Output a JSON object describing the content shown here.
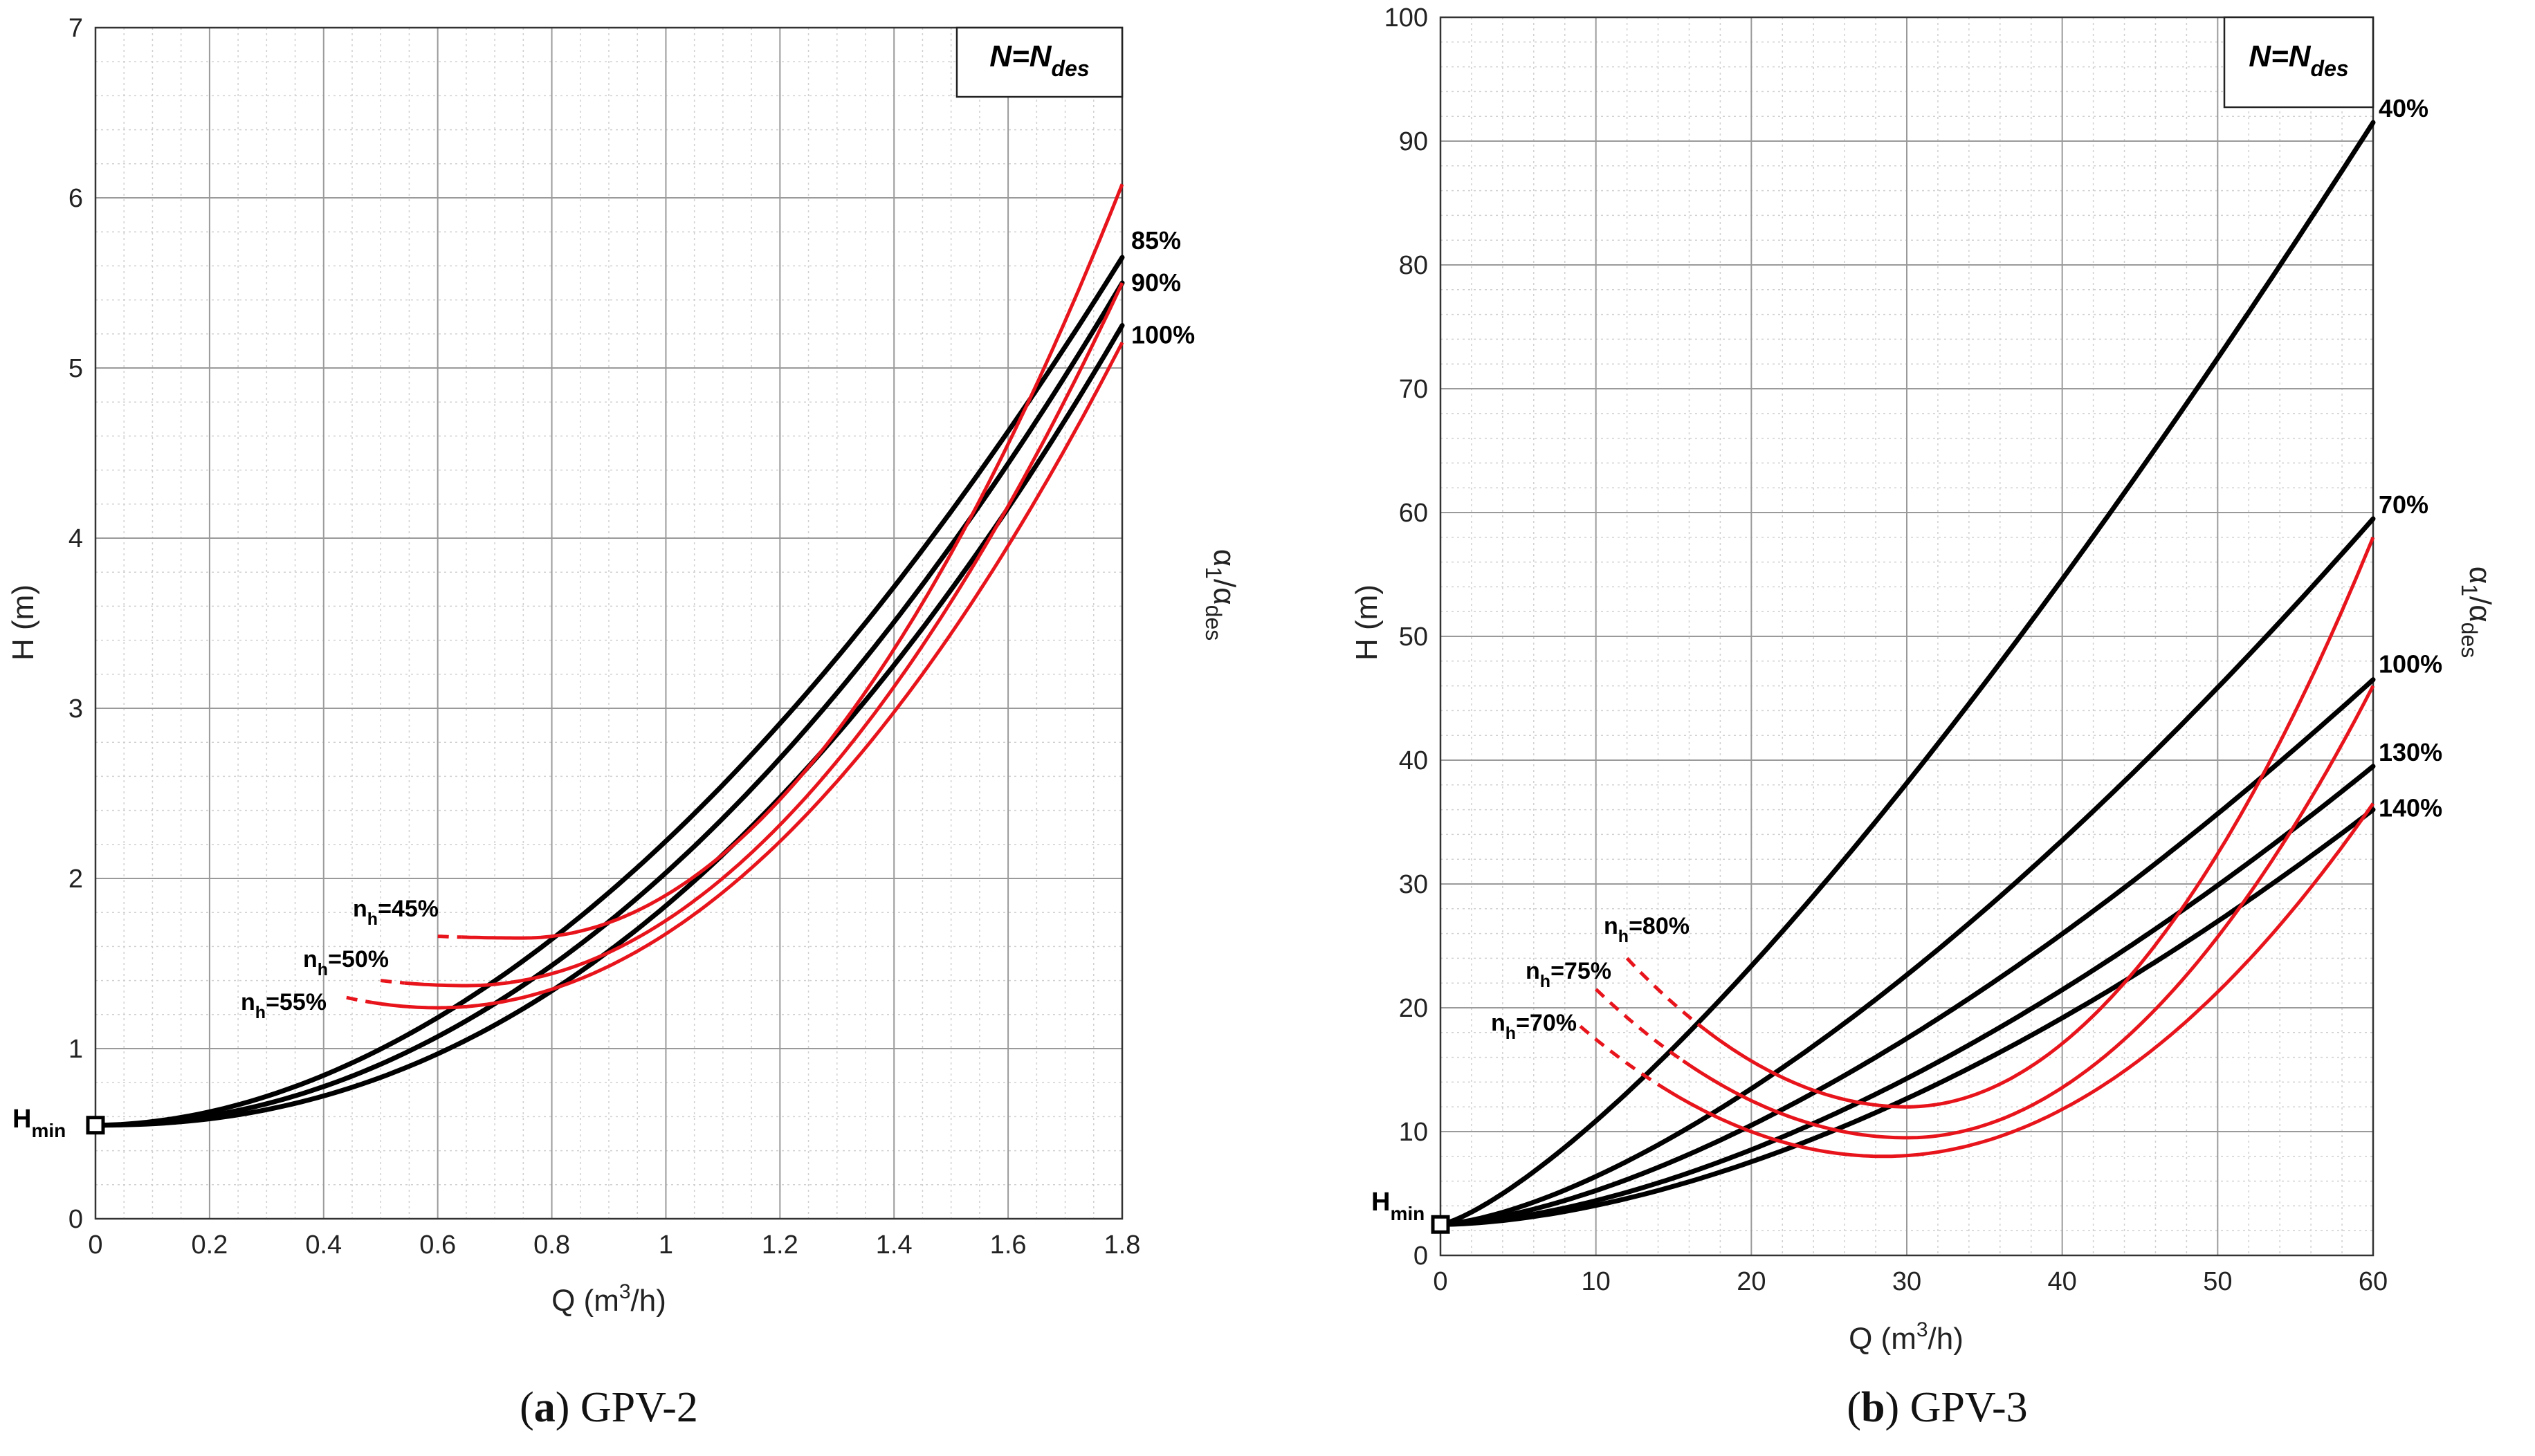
{
  "chart_data": [
    {
      "type": "line",
      "panel": "a",
      "caption": {
        "letter": "a",
        "text": " GPV-2"
      },
      "xlabel": {
        "base": "Q (m",
        "sup": "3",
        "tail": "/h)"
      },
      "ylabel": "H (m)",
      "side_label": {
        "base": "α",
        "sub1": "1",
        "mid": "/α",
        "sub2": "des"
      },
      "legend_box": {
        "base": "N=N",
        "sub": "des"
      },
      "hmin": {
        "base": "H",
        "sub": "min",
        "q": 0,
        "h": 0.55
      },
      "xlim": [
        0,
        1.8
      ],
      "ylim": [
        0,
        7
      ],
      "x_ticks": [
        0,
        0.2,
        0.4,
        0.6,
        0.8,
        1,
        1.2,
        1.4,
        1.6,
        1.8
      ],
      "x_tick_labels": [
        "0",
        "0.2",
        "0.4",
        "0.6",
        "0.8",
        "1",
        "1.2",
        "1.4",
        "1.6",
        "1.8"
      ],
      "y_ticks": [
        0,
        1,
        2,
        3,
        4,
        5,
        6,
        7
      ],
      "y_tick_labels": [
        "0",
        "1",
        "2",
        "3",
        "4",
        "5",
        "6",
        "7"
      ],
      "x_minor": 0.05,
      "y_minor": 0.2,
      "black_series": [
        {
          "name": "85%",
          "label": "85%",
          "q0": 0,
          "h0": 0.55,
          "q1": 1.8,
          "h1": 5.65,
          "p": 1.9
        },
        {
          "name": "90%",
          "label": "90%",
          "q0": 0,
          "h0": 0.55,
          "q1": 1.8,
          "h1": 5.5,
          "p": 2.05
        },
        {
          "name": "100%",
          "label": "100%",
          "q0": 0,
          "h0": 0.55,
          "q1": 1.8,
          "h1": 5.25,
          "p": 2.2
        }
      ],
      "red_series": [
        {
          "name": "nh=45%",
          "label": {
            "base": "n",
            "sub": "h",
            "tail": "=45%"
          },
          "qm": 0.75,
          "hm": 1.65,
          "q_start": 0.6,
          "h_start": 1.66,
          "q_end": 1.8,
          "h_end": 6.08
        },
        {
          "name": "nh=50%",
          "label": {
            "base": "n",
            "sub": "h",
            "tail": "=50%"
          },
          "qm": 0.65,
          "hm": 1.37,
          "q_start": 0.5,
          "h_start": 1.4,
          "q_end": 1.8,
          "h_end": 5.5
        },
        {
          "name": "nh=55%",
          "label": {
            "base": "n",
            "sub": "h",
            "tail": "=55%"
          },
          "qm": 0.6,
          "hm": 1.24,
          "q_start": 0.44,
          "h_start": 1.3,
          "q_end": 1.8,
          "h_end": 5.15
        }
      ]
    },
    {
      "type": "line",
      "panel": "b",
      "caption": {
        "letter": "b",
        "text": " GPV-3"
      },
      "xlabel": {
        "base": "Q (m",
        "sup": "3",
        "tail": "/h)"
      },
      "ylabel": "H (m)",
      "side_label": {
        "base": "α",
        "sub1": "1",
        "mid": "/α",
        "sub2": "des"
      },
      "legend_box": {
        "base": "N=N",
        "sub": "des"
      },
      "hmin": {
        "base": "H",
        "sub": "min",
        "q": 0,
        "h": 2.5
      },
      "xlim": [
        0,
        60
      ],
      "ylim": [
        0,
        100
      ],
      "x_ticks": [
        0,
        10,
        20,
        30,
        40,
        50,
        60
      ],
      "x_tick_labels": [
        "0",
        "10",
        "20",
        "30",
        "40",
        "50",
        "60"
      ],
      "y_ticks": [
        0,
        10,
        20,
        30,
        40,
        50,
        60,
        70,
        80,
        90,
        100
      ],
      "y_tick_labels": [
        "0",
        "10",
        "20",
        "30",
        "40",
        "50",
        "60",
        "70",
        "80",
        "90",
        "100"
      ],
      "x_minor": 2,
      "y_minor": 2,
      "black_series": [
        {
          "name": "40%",
          "label": "40%",
          "q0": 0,
          "h0": 2.5,
          "q1": 60,
          "h1": 91.5,
          "p": 1.32
        },
        {
          "name": "70%",
          "label": "70%",
          "q0": 0,
          "h0": 2.5,
          "q1": 60,
          "h1": 59.5,
          "p": 1.5
        },
        {
          "name": "100%",
          "label": "100%",
          "q0": 0,
          "h0": 2.5,
          "q1": 60,
          "h1": 46.5,
          "p": 1.55
        },
        {
          "name": "130%",
          "label": "130%",
          "q0": 0,
          "h0": 2.5,
          "q1": 60,
          "h1": 39.5,
          "p": 1.65
        },
        {
          "name": "140%",
          "label": "140%",
          "q0": 0,
          "h0": 2.5,
          "q1": 60,
          "h1": 36,
          "p": 1.72
        }
      ],
      "red_series": [
        {
          "name": "nh=80%",
          "label": {
            "base": "n",
            "sub": "h",
            "tail": "=80%"
          },
          "qm": 30,
          "hm": 12,
          "q_start": 12,
          "h_start": 24,
          "q_end": 60,
          "h_end": 58
        },
        {
          "name": "nh=75%",
          "label": {
            "base": "n",
            "sub": "h",
            "tail": "=75%"
          },
          "qm": 30,
          "hm": 9.5,
          "q_start": 10,
          "h_start": 21.5,
          "q_end": 60,
          "h_end": 46
        },
        {
          "name": "nh=70%",
          "label": {
            "base": "n",
            "sub": "h",
            "tail": "=70%"
          },
          "qm": 28.5,
          "hm": 8,
          "q_start": 9,
          "h_start": 18.5,
          "q_end": 60,
          "h_end": 36.5
        }
      ]
    }
  ]
}
